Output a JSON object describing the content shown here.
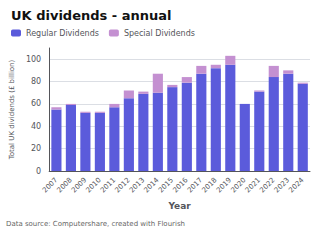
{
  "chart_data": {
    "type": "bar",
    "title": "UK dividends - annual",
    "xlabel": "Year",
    "ylabel": "Total UK dividends (£ billion)",
    "annotations": [
      "Data source: Computershare, created with Flourish"
    ],
    "categories": [
      "2007",
      "2008",
      "2009",
      "2010",
      "2011",
      "2012",
      "2013",
      "2014",
      "2015",
      "2016",
      "2017",
      "2018",
      "2019",
      "2020",
      "2021",
      "2022",
      "2023",
      "2024"
    ],
    "series": [
      {
        "name": "Regular Dividends",
        "color": "#5b5bdb",
        "values": [
          55,
          59,
          52,
          52,
          57,
          65,
          69,
          70,
          75,
          79,
          87,
          92,
          95,
          60,
          71,
          84,
          87,
          78
        ]
      },
      {
        "name": "Special Dividends",
        "color": "#c490d1",
        "values": [
          2,
          1,
          1,
          1,
          3,
          7,
          2,
          17,
          2,
          5,
          7,
          3,
          8,
          0,
          1,
          10,
          3,
          1
        ]
      }
    ],
    "stacked": true,
    "ylim": [
      0,
      110
    ],
    "yticks": [
      0,
      20,
      40,
      60,
      80,
      100
    ],
    "grid": true,
    "legend": "upper left"
  }
}
